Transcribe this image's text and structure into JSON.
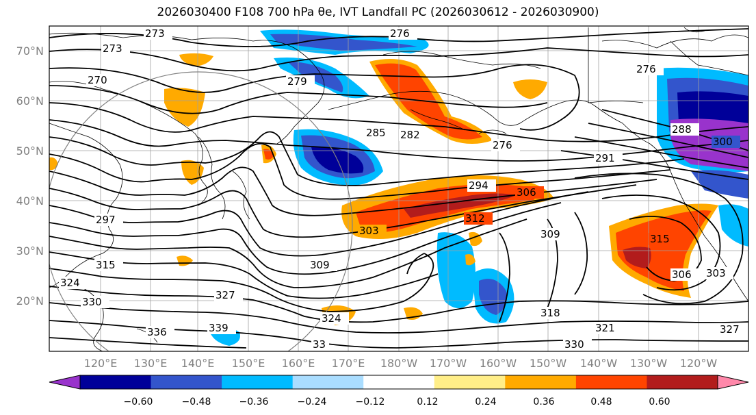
{
  "title": "2026030400 F108 700 hPa θe, IVT Landfall PC (2026030612 - 2026030900)",
  "latitude_labels": [
    "70°N",
    "60°N",
    "50°N",
    "40°N",
    "30°N",
    "20°N"
  ],
  "longitude_labels": [
    "120°E",
    "130°E",
    "140°E",
    "150°E",
    "160°E",
    "170°E",
    "180°W",
    "170°W",
    "160°W",
    "150°W",
    "140°W",
    "130°W",
    "120°W"
  ],
  "contour_labels": [
    "273",
    "273",
    "276",
    "270",
    "279",
    "276",
    "285",
    "282",
    "276",
    "288",
    "300",
    "291",
    "294",
    "306",
    "297",
    "303",
    "312",
    "309",
    "315",
    "309",
    "306",
    "303",
    "315",
    "324",
    "327",
    "330",
    "318",
    "321",
    "327",
    "336",
    "339",
    "330",
    "33",
    "324"
  ],
  "colorbar": {
    "colors": [
      "#9933cc",
      "#000099",
      "#3355cc",
      "#00bbff",
      "#aaddff",
      "#ffffff",
      "#ffee88",
      "#ffaa00",
      "#ff4400",
      "#b21c1c",
      "#ff88aa"
    ],
    "tick_labels": [
      "−0.60",
      "−0.48",
      "−0.36",
      "−0.24",
      "−0.12",
      "0.12",
      "0.24",
      "0.36",
      "0.48",
      "0.60"
    ]
  },
  "icons": [
    "map-frame",
    "coastline-shapes",
    "theta-e-contours",
    "ivt-shading",
    "colorbar-extend-arrows"
  ]
}
